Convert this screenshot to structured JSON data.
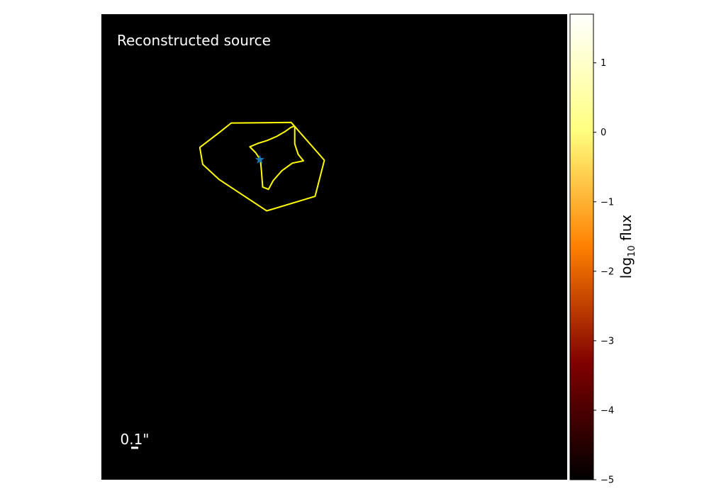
{
  "panel_title": "Reconstructed source",
  "scale_bar": {
    "label": "0.1\"",
    "length_arcsec": 0.1,
    "color": "#ffffff"
  },
  "colorbar": {
    "label": "log₁₀ flux",
    "label_base": "log",
    "label_sub": "10",
    "label_rest": " flux",
    "cmap": "afmhot",
    "range": [
      -5,
      1.7
    ],
    "ticks": [
      1,
      0,
      -1,
      -2,
      -3,
      -4,
      -5
    ],
    "tick_labels": [
      "1",
      "0",
      "−1",
      "−2",
      "−3",
      "−4",
      "−5"
    ]
  },
  "chart_data": {
    "type": "image",
    "title": "Reconstructed source",
    "background": "#000000",
    "extent": [
      -0.4,
      0.4,
      -0.4,
      0.4
    ],
    "caustic_outer": {
      "color": "#ffff00",
      "points": [
        [
          -0.197,
          0.197
        ],
        [
          -0.177,
          0.213
        ],
        [
          -0.074,
          0.214
        ],
        [
          -0.017,
          0.149
        ],
        [
          -0.033,
          0.087
        ],
        [
          -0.116,
          0.062
        ],
        [
          -0.198,
          0.116
        ],
        [
          -0.226,
          0.142
        ],
        [
          -0.231,
          0.171
        ],
        [
          -0.197,
          0.197
        ]
      ]
    },
    "caustic_inner": {
      "color": "#ffff00",
      "points": [
        [
          -0.068,
          0.208
        ],
        [
          -0.068,
          0.177
        ],
        [
          -0.062,
          0.159
        ],
        [
          -0.053,
          0.148
        ],
        [
          -0.072,
          0.144
        ],
        [
          -0.09,
          0.131
        ],
        [
          -0.105,
          0.114
        ],
        [
          -0.113,
          0.099
        ],
        [
          -0.123,
          0.103
        ],
        [
          -0.124,
          0.115
        ],
        [
          -0.125,
          0.13
        ],
        [
          -0.127,
          0.15
        ],
        [
          -0.135,
          0.162
        ],
        [
          -0.145,
          0.172
        ],
        [
          -0.131,
          0.178
        ],
        [
          -0.115,
          0.183
        ],
        [
          -0.099,
          0.19
        ],
        [
          -0.085,
          0.198
        ],
        [
          -0.075,
          0.205
        ],
        [
          -0.068,
          0.208
        ]
      ]
    },
    "source_position": {
      "x": -0.128,
      "y": 0.15,
      "color": "#1f77b4",
      "marker": "star"
    }
  }
}
